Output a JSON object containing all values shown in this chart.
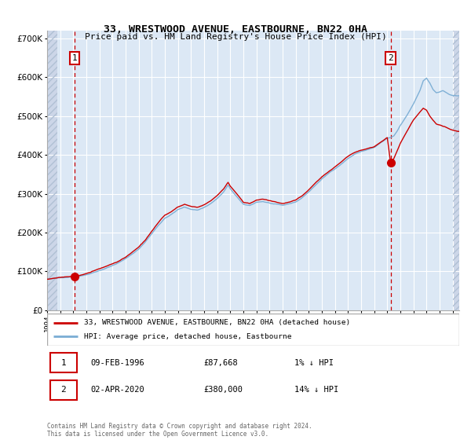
{
  "title": "33, WRESTWOOD AVENUE, EASTBOURNE, BN22 0HA",
  "subtitle": "Price paid vs. HM Land Registry's House Price Index (HPI)",
  "legend_line1": "33, WRESTWOOD AVENUE, EASTBOURNE, BN22 0HA (detached house)",
  "legend_line2": "HPI: Average price, detached house, Eastbourne",
  "annotation1": {
    "label": "1",
    "date_str": "09-FEB-1996",
    "price": 87668,
    "hpi_diff": "1% ↓ HPI"
  },
  "annotation2": {
    "label": "2",
    "date_str": "02-APR-2020",
    "price": 380000,
    "hpi_diff": "14% ↓ HPI"
  },
  "sale1_year": 1996.12,
  "sale1_price": 87668,
  "sale2_year": 2020.25,
  "sale2_price": 380000,
  "hpi_color": "#7aadd4",
  "price_color": "#cc0000",
  "bg_color": "#dce8f5",
  "vline_color": "#cc0000",
  "footer": "Contains HM Land Registry data © Crown copyright and database right 2024.\nThis data is licensed under the Open Government Licence v3.0.",
  "ylim": [
    0,
    720000
  ],
  "xlim_start": 1994.0,
  "xlim_end": 2025.5,
  "hatch_left_end": 1994.75,
  "hatch_right_start": 2025.0
}
